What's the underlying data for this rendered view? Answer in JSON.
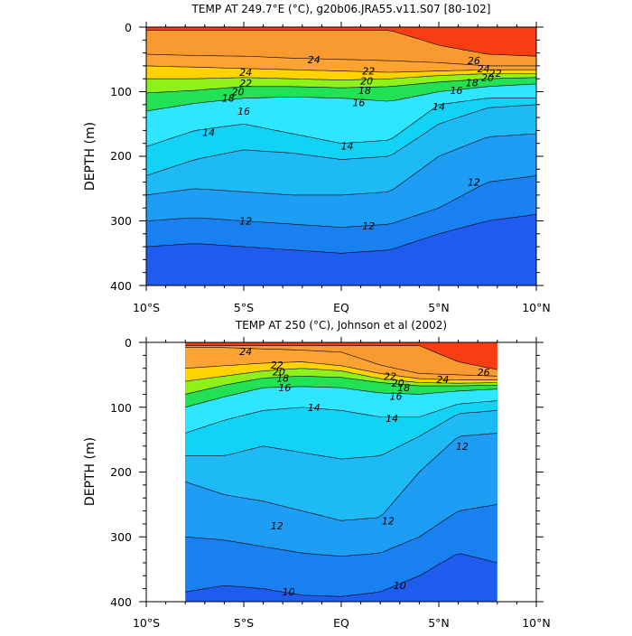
{
  "chart_data": [
    {
      "type": "contour",
      "title": "TEMP AT 249.7°E (°C), g20b06.JRA55.v11.S07 [80-102]",
      "ylabel": "DEPTH (m)",
      "xlabel": "",
      "x_ticks": [
        "10°S",
        "5°S",
        "EQ",
        "5°N",
        "10°N"
      ],
      "y_ticks": [
        "0",
        "100",
        "200",
        "300",
        "400"
      ],
      "xlim": [
        -10,
        10
      ],
      "ylim": [
        0,
        400
      ],
      "y_reversed": true,
      "data_xlim": [
        -10,
        10
      ],
      "contour_levels": [
        10,
        11,
        12,
        13,
        14,
        15,
        16,
        17,
        18,
        19,
        20,
        21,
        22,
        23,
        24,
        25,
        26
      ],
      "contour_labels": [
        {
          "text": "24",
          "x": -4.9,
          "depth": 70
        },
        {
          "text": "22",
          "x": -4.9,
          "depth": 87
        },
        {
          "text": "20",
          "x": -5.3,
          "depth": 100
        },
        {
          "text": "18",
          "x": -5.8,
          "depth": 110
        },
        {
          "text": "16",
          "x": -5.0,
          "depth": 130
        },
        {
          "text": "14",
          "x": -6.8,
          "depth": 163
        },
        {
          "text": "24",
          "x": -1.4,
          "depth": 50
        },
        {
          "text": "22",
          "x": 1.4,
          "depth": 68
        },
        {
          "text": "20",
          "x": 1.3,
          "depth": 83
        },
        {
          "text": "18",
          "x": 1.2,
          "depth": 98
        },
        {
          "text": "16",
          "x": 0.9,
          "depth": 117
        },
        {
          "text": "14",
          "x": 0.3,
          "depth": 184
        },
        {
          "text": "14",
          "x": 5.0,
          "depth": 123
        },
        {
          "text": "26",
          "x": 6.8,
          "depth": 52
        },
        {
          "text": "24",
          "x": 7.3,
          "depth": 64
        },
        {
          "text": "22",
          "x": 7.9,
          "depth": 71
        },
        {
          "text": "20",
          "x": 7.5,
          "depth": 78
        },
        {
          "text": "18",
          "x": 6.7,
          "depth": 86
        },
        {
          "text": "16",
          "x": 5.9,
          "depth": 98
        },
        {
          "text": "12",
          "x": 6.8,
          "depth": 240
        },
        {
          "text": "12",
          "x": -4.9,
          "depth": 300
        },
        {
          "text": "12",
          "x": 1.4,
          "depth": 308
        }
      ],
      "temperature_field": {
        "x": [
          -10,
          -7.5,
          -5,
          -2.5,
          0,
          2.5,
          5,
          7.5,
          10
        ],
        "isotherm_depths": {
          "26": [
            5,
            5,
            5,
            5,
            5,
            5,
            28,
            42,
            45
          ],
          "24": [
            42,
            44,
            45,
            48,
            50,
            52,
            55,
            60,
            60
          ],
          "22": [
            60,
            62,
            64,
            66,
            68,
            70,
            68,
            66,
            66
          ],
          "20": [
            80,
            80,
            78,
            80,
            82,
            80,
            75,
            72,
            72
          ],
          "18": [
            102,
            98,
            92,
            92,
            94,
            92,
            85,
            80,
            78
          ],
          "16": [
            130,
            118,
            110,
            108,
            110,
            115,
            100,
            92,
            88
          ],
          "14": [
            185,
            160,
            150,
            165,
            180,
            175,
            120,
            110,
            110
          ],
          "13": [
            230,
            205,
            190,
            195,
            205,
            200,
            150,
            125,
            120
          ],
          "12": [
            260,
            250,
            255,
            260,
            260,
            255,
            200,
            170,
            165
          ],
          "11": [
            300,
            295,
            300,
            305,
            310,
            305,
            280,
            240,
            230
          ],
          "10": [
            340,
            335,
            340,
            345,
            350,
            345,
            320,
            300,
            290
          ]
        }
      }
    },
    {
      "type": "contour",
      "title": "TEMP AT 250 (°C), Johnson et al (2002)",
      "ylabel": "DEPTH (m)",
      "xlabel": "",
      "x_ticks": [
        "10°S",
        "5°S",
        "EQ",
        "5°N",
        "10°N"
      ],
      "y_ticks": [
        "0",
        "100",
        "200",
        "300",
        "400"
      ],
      "xlim": [
        -10,
        10
      ],
      "ylim": [
        0,
        400
      ],
      "y_reversed": true,
      "data_xlim": [
        -8,
        8
      ],
      "contour_levels": [
        10,
        11,
        12,
        13,
        14,
        15,
        16,
        17,
        18,
        19,
        20,
        21,
        22,
        23,
        24,
        25,
        26
      ],
      "contour_labels": [
        {
          "text": "24",
          "x": -4.9,
          "depth": 14
        },
        {
          "text": "22",
          "x": -3.3,
          "depth": 35
        },
        {
          "text": "20",
          "x": -3.2,
          "depth": 45
        },
        {
          "text": "18",
          "x": -3.0,
          "depth": 55
        },
        {
          "text": "16",
          "x": -2.9,
          "depth": 70
        },
        {
          "text": "14",
          "x": -1.4,
          "depth": 100
        },
        {
          "text": "22",
          "x": 2.5,
          "depth": 52
        },
        {
          "text": "20",
          "x": 2.9,
          "depth": 63
        },
        {
          "text": "18",
          "x": 3.2,
          "depth": 70
        },
        {
          "text": "16",
          "x": 2.8,
          "depth": 83
        },
        {
          "text": "14",
          "x": 2.6,
          "depth": 117
        },
        {
          "text": "24",
          "x": 5.2,
          "depth": 57
        },
        {
          "text": "26",
          "x": 7.3,
          "depth": 46
        },
        {
          "text": "12",
          "x": 6.2,
          "depth": 160
        },
        {
          "text": "12",
          "x": -3.3,
          "depth": 283
        },
        {
          "text": "12",
          "x": 2.4,
          "depth": 275
        },
        {
          "text": "10",
          "x": -2.7,
          "depth": 385
        },
        {
          "text": "10",
          "x": 3.0,
          "depth": 375
        }
      ],
      "temperature_field": {
        "x": [
          -8,
          -6,
          -4,
          -2,
          0,
          2,
          4,
          6,
          8
        ],
        "isotherm_depths": {
          "26": [
            5,
            5,
            5,
            5,
            5,
            5,
            5,
            30,
            42
          ],
          "24": [
            8,
            8,
            10,
            12,
            15,
            35,
            48,
            50,
            52
          ],
          "22": [
            40,
            36,
            32,
            30,
            36,
            48,
            56,
            58,
            58
          ],
          "20": [
            60,
            52,
            44,
            40,
            44,
            56,
            62,
            63,
            62
          ],
          "18": [
            80,
            66,
            55,
            52,
            54,
            62,
            67,
            67,
            66
          ],
          "16": [
            100,
            84,
            70,
            68,
            70,
            78,
            80,
            75,
            72
          ],
          "14": [
            140,
            120,
            105,
            100,
            105,
            115,
            115,
            95,
            90
          ],
          "13": [
            175,
            175,
            160,
            170,
            180,
            175,
            145,
            110,
            105
          ],
          "12": [
            215,
            235,
            245,
            260,
            275,
            270,
            200,
            145,
            140
          ],
          "11": [
            300,
            305,
            315,
            325,
            330,
            325,
            300,
            260,
            250
          ],
          "10": [
            385,
            375,
            380,
            390,
            392,
            385,
            360,
            325,
            340
          ]
        }
      }
    }
  ],
  "colors": {
    "band_below_10": "#1e5bef",
    "band_10_11": "#1980f0",
    "band_11_12": "#1e9df5",
    "band_12_13": "#1ebaf6",
    "band_13_14": "#12d3f5",
    "band_14_15": "#2ee6ff",
    "band_15_16": "#1affbe",
    "band_16_17": "#22e155",
    "band_17_18": "#12c10f",
    "band_18_19": "#8ef21a",
    "band_19_20": "#e9f810",
    "band_20_21": "#ffd200",
    "band_21_22": "#ffb923",
    "band_22_23": "#fca333",
    "band_23_24": "#ff981e",
    "band_24_25": "#f99a30",
    "band_25_26": "#f0860f",
    "band_above_26": "#f73d11",
    "contour_line": "#000000"
  }
}
